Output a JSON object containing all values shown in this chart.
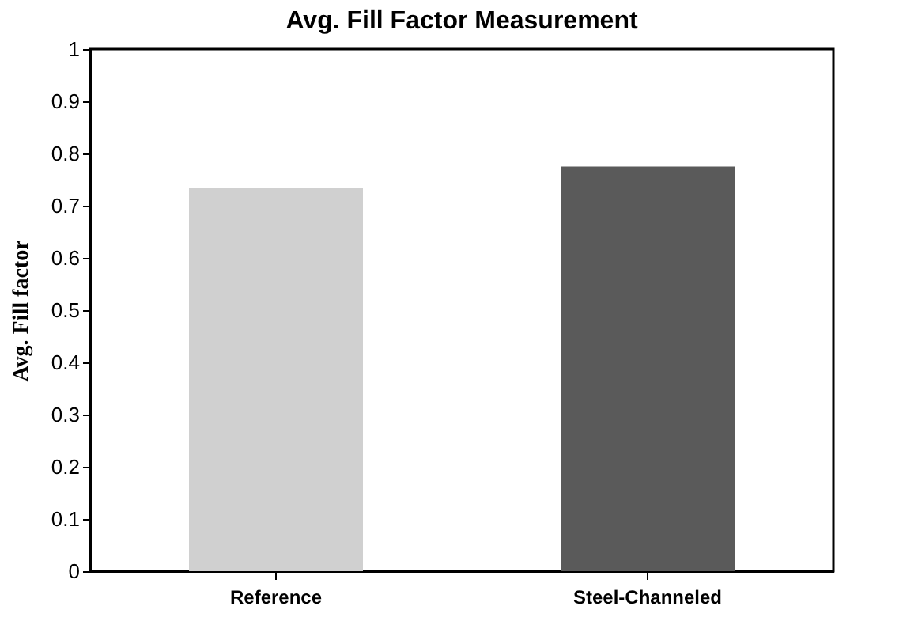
{
  "chart_data": {
    "type": "bar",
    "title": "Avg. Fill Factor Measurement",
    "ylabel": "Avg. Fill factor",
    "categories": [
      "Reference",
      "Steel-Channeled"
    ],
    "values": [
      0.735,
      0.775
    ],
    "colors": [
      "#d0d0d0",
      "#5a5a5a"
    ],
    "ylim": [
      0,
      1
    ],
    "yticks": [
      0,
      0.1,
      0.2,
      0.3,
      0.4,
      0.5,
      0.6,
      0.7,
      0.8,
      0.9,
      1
    ],
    "grid": false,
    "legend": false
  }
}
